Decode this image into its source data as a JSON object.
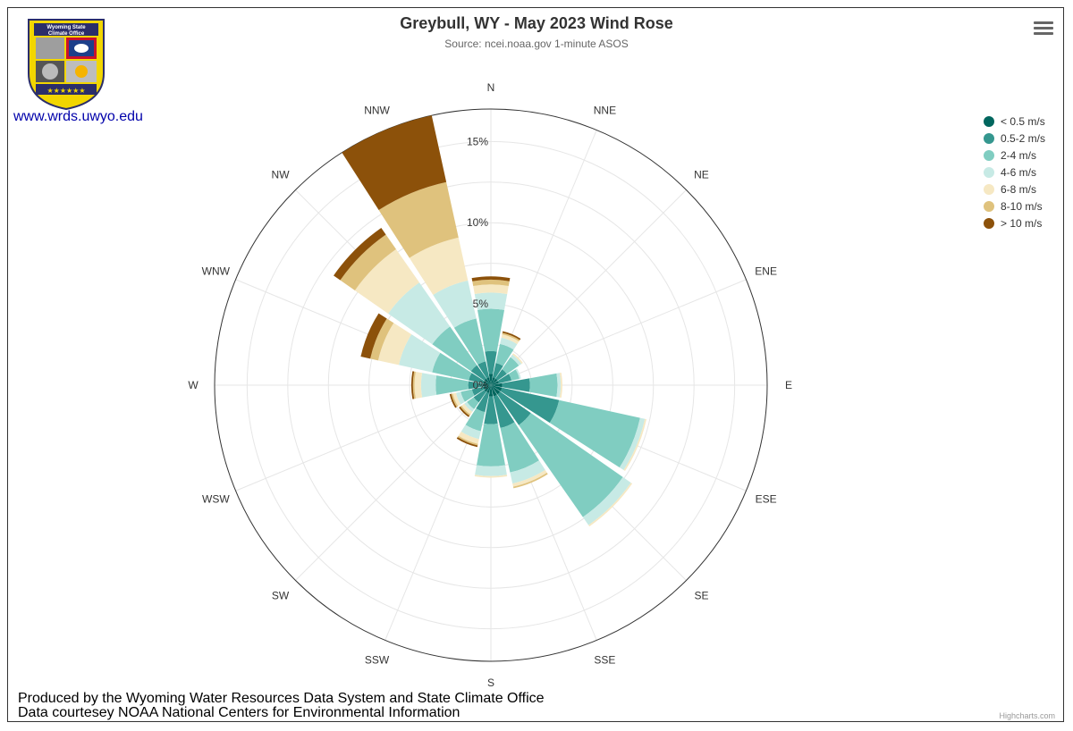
{
  "header": {
    "title": "Greybull, WY - May 2023 Wind Rose",
    "subtitle": "Source: ncei.noaa.gov 1-minute ASOS"
  },
  "logo": {
    "line1": "Wyoming State",
    "line2": "Climate Office"
  },
  "site_link": "www.wrds.uwyo.edu",
  "credits": {
    "line1": "Produced by the Wyoming Water Resources Data System and State Climate Office",
    "line2": "Data courtesey NOAA National Centers for Environmental Information"
  },
  "highcharts_credit": "Highcharts.com",
  "icons": {
    "menu": "hamburger-menu-icon"
  },
  "chart_data": {
    "type": "bar",
    "subtype": "polar-stacked-wind-rose",
    "title": "Greybull, WY - May 2023 Wind Rose",
    "subtitle": "Source: ncei.noaa.gov 1-minute ASOS",
    "categories": [
      "N",
      "NNE",
      "NE",
      "ENE",
      "E",
      "ESE",
      "SE",
      "SSE",
      "S",
      "SSW",
      "SW",
      "WSW",
      "W",
      "WNW",
      "NW",
      "NNW"
    ],
    "radial_ticks": [
      "0%",
      "5%",
      "10%",
      "15%"
    ],
    "radial_max": 17,
    "legend_position": "right",
    "series": [
      {
        "name": "< 0.5 m/s",
        "color": "#01665e",
        "values": [
          0.7,
          0.5,
          0.5,
          0.5,
          0.7,
          0.7,
          0.7,
          0.7,
          0.7,
          0.5,
          0.5,
          0.5,
          0.5,
          0.5,
          0.5,
          0.5
        ]
      },
      {
        "name": "0.5-2 m/s",
        "color": "#35978f",
        "values": [
          1.4,
          0.9,
          0.7,
          0.8,
          1.7,
          3.6,
          2.3,
          2.0,
          1.7,
          1.2,
          0.8,
          0.7,
          0.9,
          0.9,
          1.0,
          1.0
        ]
      },
      {
        "name": "2-4 m/s",
        "color": "#80cdc1",
        "values": [
          2.6,
          1.2,
          0.9,
          0.5,
          1.7,
          5.1,
          6.9,
          2.8,
          2.6,
          1.2,
          0.5,
          0.7,
          2.0,
          2.3,
          2.9,
          2.7
        ]
      },
      {
        "name": "4-6 m/s",
        "color": "#c7eae5",
        "values": [
          1.0,
          0.4,
          0.2,
          0.1,
          0.2,
          0.3,
          0.6,
          0.7,
          0.6,
          0.5,
          0.2,
          0.3,
          0.9,
          2.1,
          3.3,
          2.4
        ]
      },
      {
        "name": "6-8 m/s",
        "color": "#f6e8c3",
        "values": [
          0.5,
          0.2,
          0.1,
          0,
          0.1,
          0.1,
          0.1,
          0.2,
          0.1,
          0.3,
          0.2,
          0.2,
          0.4,
          1.3,
          2.5,
          2.7
        ]
      },
      {
        "name": "8-10 m/s",
        "color": "#dfc27d",
        "values": [
          0.3,
          0.1,
          0,
          0,
          0,
          0,
          0,
          0.1,
          0,
          0.1,
          0.1,
          0.1,
          0.1,
          0.5,
          1.1,
          3.5
        ]
      },
      {
        "name": "> 10 m/s",
        "color": "#8c510a",
        "values": [
          0.2,
          0.1,
          0,
          0,
          0,
          0,
          0,
          0,
          0,
          0.1,
          0.1,
          0.1,
          0.1,
          0.6,
          0.5,
          4.2
        ]
      }
    ]
  }
}
